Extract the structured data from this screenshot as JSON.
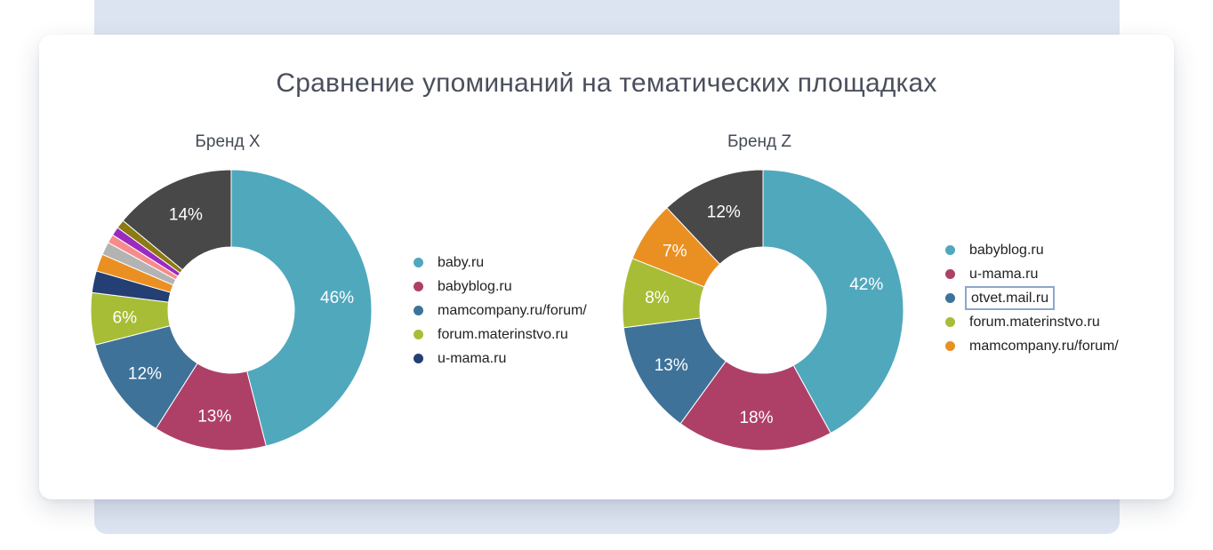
{
  "title": "Сравнение упоминаний на тематических площадках",
  "chart_data": [
    {
      "type": "pie",
      "subtitle": "Бренд X",
      "slices": [
        {
          "label": "baby.ru",
          "value": 46,
          "color": "#50a8bd",
          "data_label": "46%"
        },
        {
          "label": "babyblog.ru",
          "value": 13,
          "color": "#ae4068",
          "data_label": "13%"
        },
        {
          "label": "mamcompany.ru/forum/",
          "value": 12,
          "color": "#3e7299",
          "data_label": "12%"
        },
        {
          "label": "forum.materinstvo.ru",
          "value": 6,
          "color": "#a8bd36",
          "data_label": "6%"
        },
        {
          "label": "u-mama.ru",
          "value": 2.5,
          "color": "#233f73",
          "data_label": ""
        },
        {
          "label": "",
          "value": 2,
          "color": "#ea9023",
          "data_label": ""
        },
        {
          "label": "",
          "value": 1.5,
          "color": "#b3b3b3",
          "data_label": ""
        },
        {
          "label": "",
          "value": 1,
          "color": "#f78b8b",
          "data_label": ""
        },
        {
          "label": "",
          "value": 1,
          "color": "#9b2bbf",
          "data_label": ""
        },
        {
          "label": "",
          "value": 1,
          "color": "#8c7a12",
          "data_label": ""
        },
        {
          "label": "",
          "value": 14,
          "color": "#484848",
          "data_label": "14%"
        }
      ],
      "legend": [
        "baby.ru",
        "babyblog.ru",
        "mamcompany.ru/forum/",
        "forum.materinstvo.ru",
        "u-mama.ru"
      ]
    },
    {
      "type": "pie",
      "subtitle": "Бренд Z",
      "slices": [
        {
          "label": "babyblog.ru",
          "value": 42,
          "color": "#50a8bd",
          "data_label": "42%"
        },
        {
          "label": "u-mama.ru",
          "value": 18,
          "color": "#ae4068",
          "data_label": "18%"
        },
        {
          "label": "otvet.mail.ru",
          "value": 13,
          "color": "#3e7299",
          "data_label": "13%"
        },
        {
          "label": "forum.materinstvo.ru",
          "value": 8,
          "color": "#a8bd36",
          "data_label": "8%"
        },
        {
          "label": "mamcompany.ru/forum/",
          "value": 7,
          "color": "#ea9023",
          "data_label": "7%"
        },
        {
          "label": "",
          "value": 12,
          "color": "#484848",
          "data_label": "12%"
        }
      ],
      "legend": [
        "babyblog.ru",
        "u-mama.ru",
        "otvet.mail.ru",
        "forum.materinstvo.ru",
        "mamcompany.ru/forum/"
      ],
      "highlighted_legend_item": "otvet.mail.ru"
    }
  ]
}
